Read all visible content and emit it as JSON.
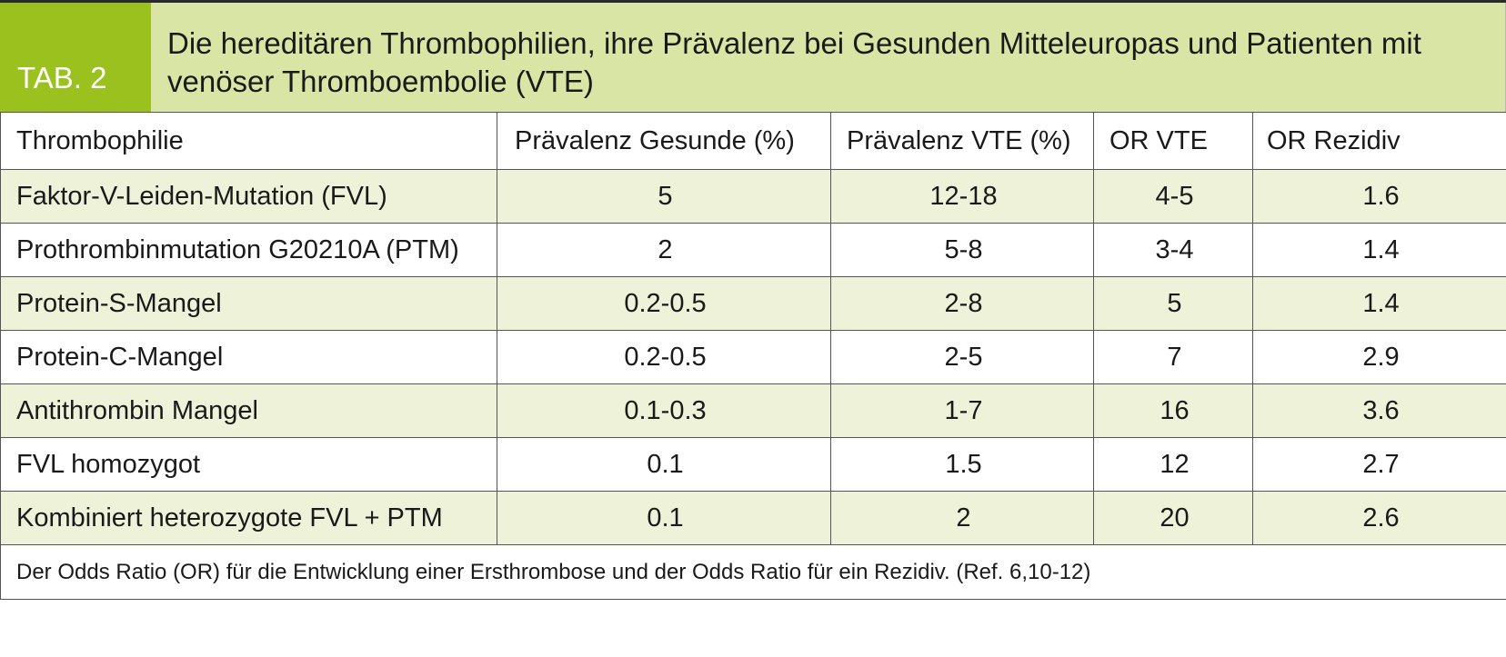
{
  "tab_label": "TAB. 2",
  "title": "Die hereditären Thrombophilien, ihre Prävalenz bei Gesunden Mitteleuropas und Patienten mit venöser Thromboembolie (VTE)",
  "headers": {
    "thrombophilie": "Thrombophilie",
    "praevalenz_gesunde": "Prävalenz Gesunde (%)",
    "praevalenz_vte": "Prävalenz VTE (%)",
    "or_vte": "OR VTE",
    "or_rezidiv": "OR Rezidiv"
  },
  "rows": [
    {
      "name": "Faktor-V-Leiden-Mutation (FVL)",
      "gesunde": "5",
      "vte": "12-18",
      "or_vte": "4-5",
      "or_rezidiv": "1.6"
    },
    {
      "name": "Prothrombinmutation G20210A (PTM)",
      "gesunde": "2",
      "vte": "5-8",
      "or_vte": "3-4",
      "or_rezidiv": "1.4"
    },
    {
      "name": "Protein-S-Mangel",
      "gesunde": "0.2-0.5",
      "vte": "2-8",
      "or_vte": "5",
      "or_rezidiv": "1.4"
    },
    {
      "name": "Protein-C-Mangel",
      "gesunde": "0.2-0.5",
      "vte": "2-5",
      "or_vte": "7",
      "or_rezidiv": "2.9"
    },
    {
      "name": "Antithrombin Mangel",
      "gesunde": "0.1-0.3",
      "vte": "1-7",
      "or_vte": "16",
      "or_rezidiv": "3.6"
    },
    {
      "name": "FVL homozygot",
      "gesunde": "0.1",
      "vte": "1.5",
      "or_vte": "12",
      "or_rezidiv": "2.7"
    },
    {
      "name": "Kombiniert heterozygote FVL + PTM",
      "gesunde": "0.1",
      "vte": "2",
      "or_vte": "20",
      "or_rezidiv": "2.6"
    }
  ],
  "footnote": "Der Odds Ratio (OR) für die Entwicklung einer Ersthrombose und der Odds Ratio für ein Rezidiv. (Ref. 6,10-12)",
  "colors": {
    "tab_green": "#9bc11f",
    "title_background": "#d9e5a5",
    "alt_row_background": "#eef2d8"
  }
}
